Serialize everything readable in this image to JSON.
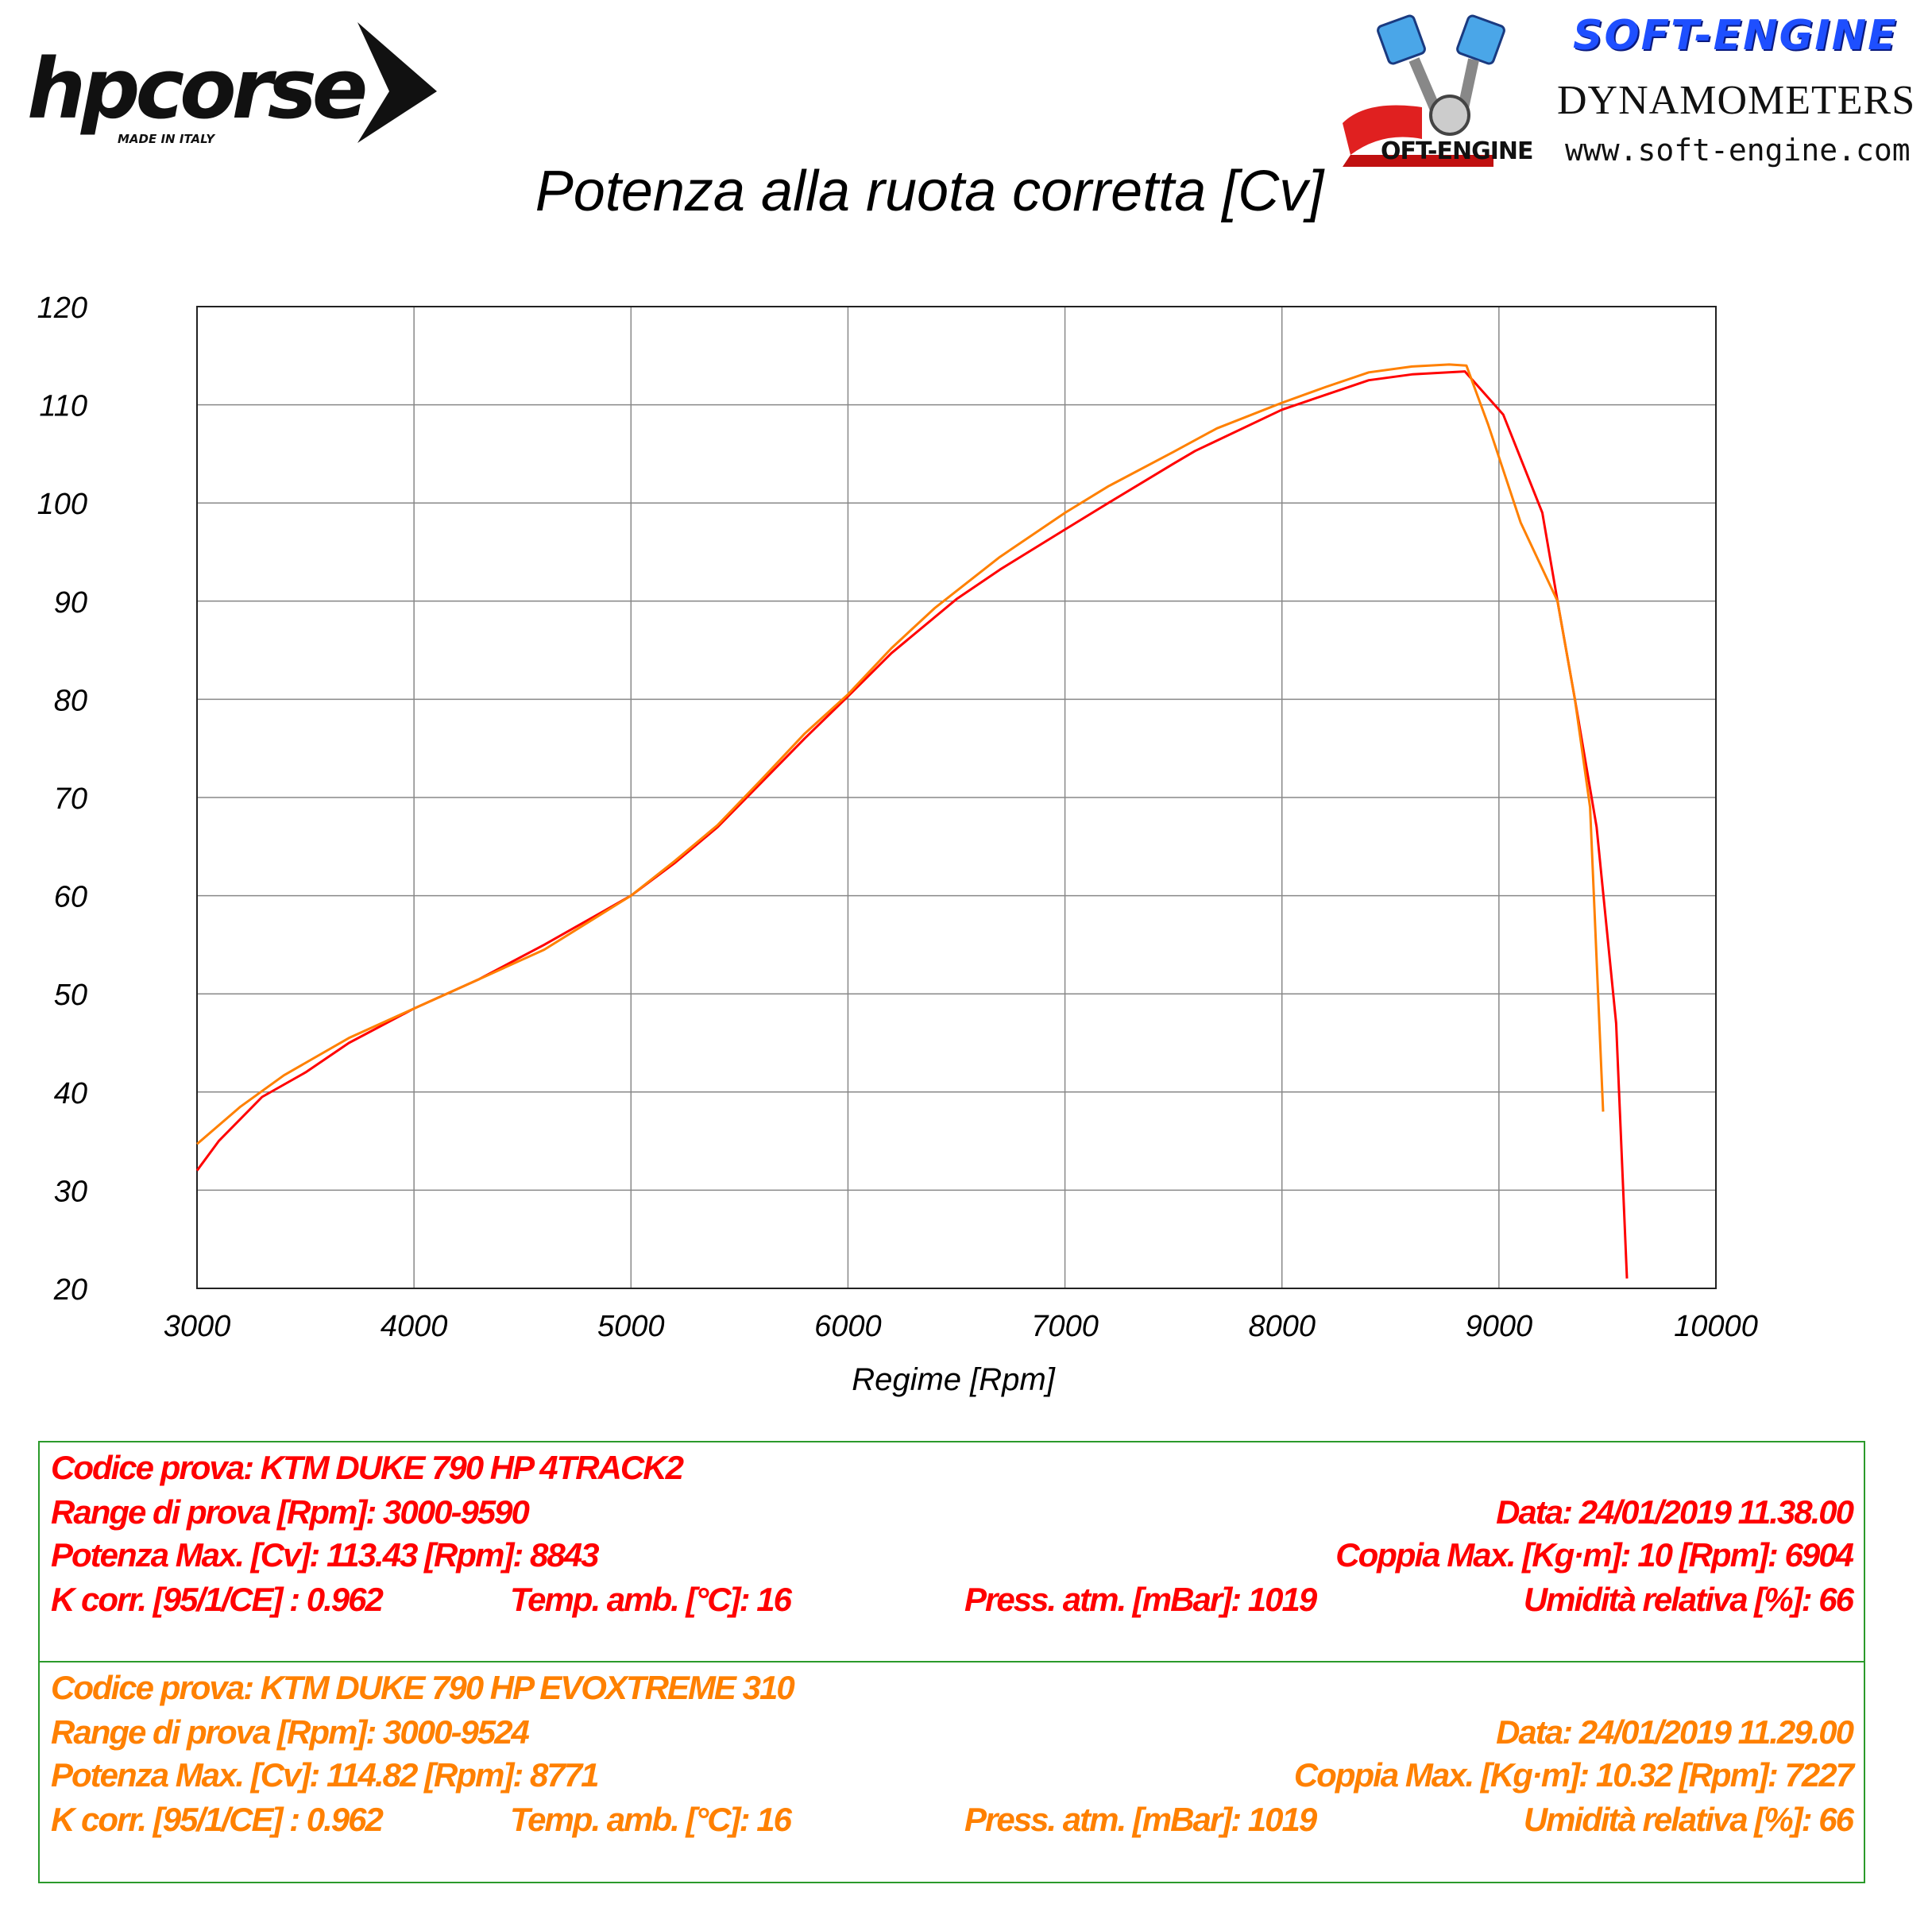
{
  "header": {
    "hp_logo_text": "hpcorse",
    "hp_logo_sub": "MADE IN ITALY",
    "se_title": "SOFT-ENGINE",
    "se_dyn": "DYNAMOMETERS",
    "se_web": "www.soft-engine.com",
    "se_small": "OFT-ENGINE"
  },
  "chart_data": {
    "type": "line",
    "title": "Potenza alla ruota corretta [Cv]",
    "xlabel": "Regime [Rpm]",
    "ylabel": "",
    "xlim": [
      3000,
      10000
    ],
    "ylim": [
      20,
      120
    ],
    "xticks": [
      3000,
      4000,
      5000,
      6000,
      7000,
      8000,
      9000,
      10000
    ],
    "yticks": [
      20,
      30,
      40,
      50,
      60,
      70,
      80,
      90,
      100,
      110,
      120
    ],
    "grid": true,
    "series": [
      {
        "color": "#ff0000",
        "points": [
          [
            3000,
            32
          ],
          [
            3100,
            35
          ],
          [
            3300,
            39.5
          ],
          [
            3500,
            42
          ],
          [
            3700,
            45
          ],
          [
            4000,
            48.5
          ],
          [
            4300,
            51.5
          ],
          [
            4600,
            55
          ],
          [
            5000,
            60
          ],
          [
            5200,
            63.3
          ],
          [
            5400,
            67
          ],
          [
            5600,
            71.5
          ],
          [
            5800,
            76
          ],
          [
            6000,
            80.3
          ],
          [
            6200,
            84.7
          ],
          [
            6500,
            90.2
          ],
          [
            6700,
            93.2
          ],
          [
            7000,
            97.3
          ],
          [
            7200,
            100
          ],
          [
            7500,
            104
          ],
          [
            7600,
            105.3
          ],
          [
            8000,
            109.5
          ],
          [
            8200,
            111
          ],
          [
            8400,
            112.5
          ],
          [
            8600,
            113.1
          ],
          [
            8843,
            113.4
          ],
          [
            9020,
            109
          ],
          [
            9200,
            99
          ],
          [
            9270,
            90
          ],
          [
            9350,
            80
          ],
          [
            9450,
            67
          ],
          [
            9540,
            47
          ],
          [
            9590,
            21
          ]
        ]
      },
      {
        "color": "#ff8000",
        "points": [
          [
            3000,
            34.7
          ],
          [
            3200,
            38.5
          ],
          [
            3400,
            41.7
          ],
          [
            3700,
            45.5
          ],
          [
            4000,
            48.5
          ],
          [
            4300,
            51.5
          ],
          [
            4600,
            54.5
          ],
          [
            5000,
            60
          ],
          [
            5200,
            63.5
          ],
          [
            5400,
            67.2
          ],
          [
            5600,
            71.8
          ],
          [
            5800,
            76.5
          ],
          [
            6000,
            80.5
          ],
          [
            6200,
            85.2
          ],
          [
            6400,
            89.3
          ],
          [
            6700,
            94.5
          ],
          [
            7000,
            99
          ],
          [
            7200,
            101.7
          ],
          [
            7500,
            105.2
          ],
          [
            7700,
            107.6
          ],
          [
            8000,
            110.2
          ],
          [
            8200,
            111.8
          ],
          [
            8400,
            113.3
          ],
          [
            8600,
            113.9
          ],
          [
            8771,
            114.1
          ],
          [
            8850,
            114
          ],
          [
            8950,
            108
          ],
          [
            9100,
            98
          ],
          [
            9270,
            90
          ],
          [
            9350,
            80
          ],
          [
            9420,
            69
          ],
          [
            9480,
            38
          ]
        ]
      }
    ]
  },
  "tests": [
    {
      "color": "#ff0000",
      "code": "Codice prova: KTM DUKE 790 HP 4TRACK2",
      "range": "Range di prova [Rpm]: 3000-9590",
      "date": "Data: 24/01/2019   11.38.00",
      "power": "Potenza Max. [Cv]: 113.43   [Rpm]: 8843",
      "torque": "Coppia Max. [Kg·m]: 10   [Rpm]: 6904",
      "kcorr": "K corr. [95/1/CE] : 0.962",
      "temp": "Temp. amb. [°C]: 16",
      "press": "Press. atm. [mBar]: 1019",
      "humidity": "Umidità relativa [%]: 66"
    },
    {
      "color": "#ff8000",
      "code": "Codice prova: KTM DUKE 790 HP   EVOXTREME 310",
      "range": "Range di prova [Rpm]: 3000-9524",
      "date": "Data: 24/01/2019   11.29.00",
      "power": "Potenza Max. [Cv]:  114.82    [Rpm]: 8771",
      "torque": "Coppia Max. [Kg·m]: 10.32   [Rpm]: 7227",
      "kcorr": "K corr. [95/1/CE] : 0.962",
      "temp": "Temp. amb. [°C]: 16",
      "press": "Press. atm. [mBar]: 1019",
      "humidity": "Umidità relativa [%]: 66"
    }
  ]
}
